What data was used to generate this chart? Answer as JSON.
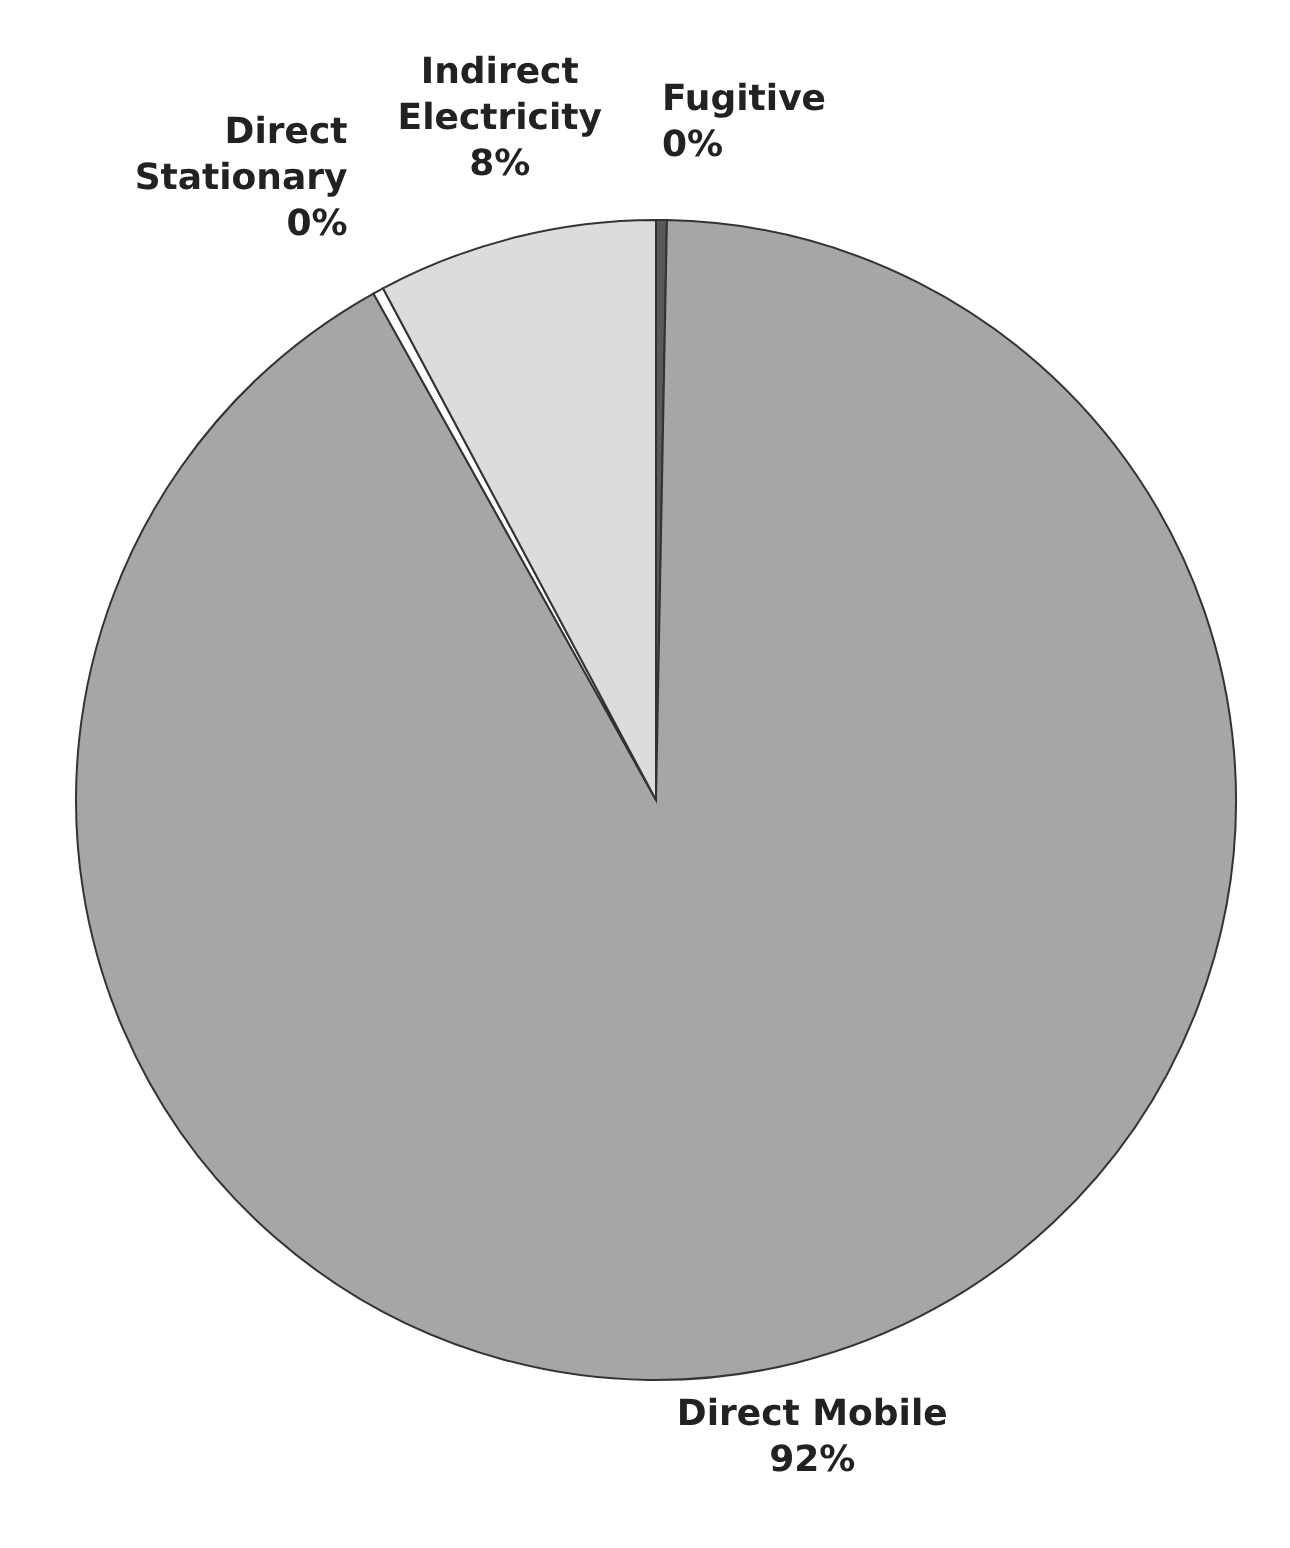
{
  "chart_data": {
    "type": "pie",
    "categories": [
      "Fugitive",
      "Direct Mobile",
      "Direct Stationary",
      "Indirect Electricity"
    ],
    "values": [
      0.3,
      91.6,
      0.3,
      7.8
    ],
    "value_labels": [
      "0%",
      "92%",
      "0%",
      "8%"
    ],
    "colors": [
      "#595959",
      "#a6a6a6",
      "#ffffff",
      "#dcdcdc"
    ]
  }
}
